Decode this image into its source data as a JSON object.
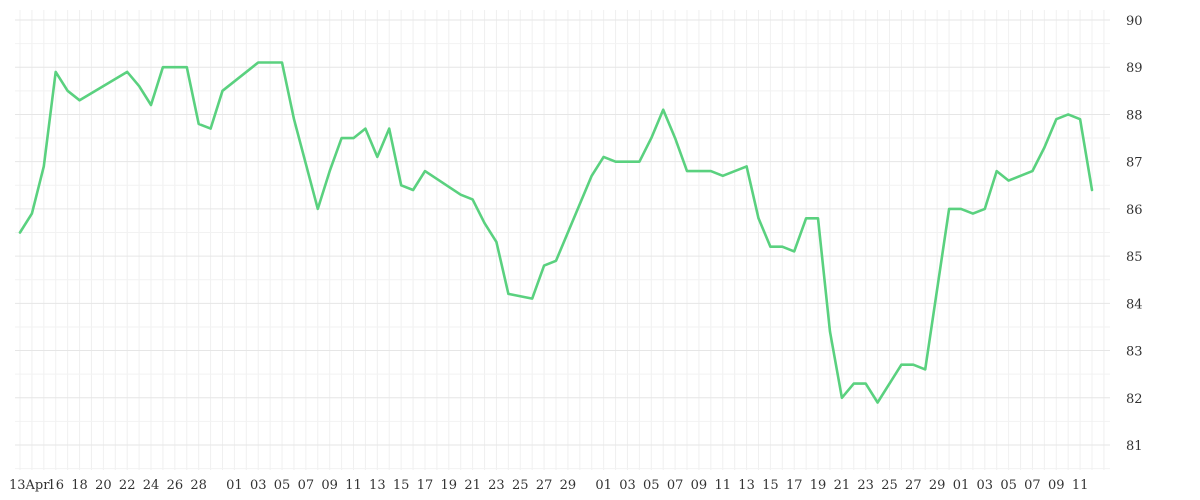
{
  "chart_data": {
    "type": "line",
    "title": "",
    "xlabel": "",
    "ylabel": "",
    "x_range": [
      "2023-04-13",
      "2023-07-12"
    ],
    "ylim": [
      80.5,
      90.2
    ],
    "y_ticks": [
      81,
      82,
      83,
      84,
      85,
      86,
      87,
      88,
      89,
      90
    ],
    "x_tick_labels": [
      "13Apr",
      "16",
      "18",
      "20",
      "22",
      "24",
      "26",
      "28",
      "01",
      "03",
      "05",
      "07",
      "09",
      "11",
      "13",
      "15",
      "17",
      "19",
      "21",
      "23",
      "25",
      "27",
      "29",
      "01",
      "03",
      "05",
      "07",
      "09",
      "11",
      "13",
      "15",
      "17",
      "19",
      "21",
      "23",
      "25",
      "27",
      "29",
      "01",
      "03",
      "05",
      "07",
      "09",
      "11"
    ],
    "x_tick_dates": [
      "2023-04-13",
      "2023-04-16",
      "2023-04-18",
      "2023-04-20",
      "2023-04-22",
      "2023-04-24",
      "2023-04-26",
      "2023-04-28",
      "2023-05-01",
      "2023-05-03",
      "2023-05-05",
      "2023-05-07",
      "2023-05-09",
      "2023-05-11",
      "2023-05-13",
      "2023-05-15",
      "2023-05-17",
      "2023-05-19",
      "2023-05-21",
      "2023-05-23",
      "2023-05-25",
      "2023-05-27",
      "2023-05-29",
      "2023-06-01",
      "2023-06-03",
      "2023-06-05",
      "2023-06-07",
      "2023-06-09",
      "2023-06-11",
      "2023-06-13",
      "2023-06-15",
      "2023-06-17",
      "2023-06-19",
      "2023-06-21",
      "2023-06-23",
      "2023-06-25",
      "2023-06-27",
      "2023-06-29",
      "2023-07-01",
      "2023-07-03",
      "2023-07-05",
      "2023-07-07",
      "2023-07-09",
      "2023-07-11"
    ],
    "grid": true,
    "y_axis_position": "right",
    "series": [
      {
        "color": "#5ad17f",
        "x": [
          "2023-04-13",
          "2023-04-14",
          "2023-04-15",
          "2023-04-16",
          "2023-04-17",
          "2023-04-18",
          "2023-04-22",
          "2023-04-23",
          "2023-04-24",
          "2023-04-25",
          "2023-04-26",
          "2023-04-27",
          "2023-04-28",
          "2023-04-29",
          "2023-04-30",
          "2023-05-03",
          "2023-05-05",
          "2023-05-06",
          "2023-05-08",
          "2023-05-09",
          "2023-05-10",
          "2023-05-11",
          "2023-05-12",
          "2023-05-13",
          "2023-05-14",
          "2023-05-15",
          "2023-05-16",
          "2023-05-17",
          "2023-05-20",
          "2023-05-21",
          "2023-05-22",
          "2023-05-23",
          "2023-05-24",
          "2023-05-26",
          "2023-05-27",
          "2023-05-28",
          "2023-05-31",
          "2023-06-01",
          "2023-06-02",
          "2023-06-04",
          "2023-06-05",
          "2023-06-06",
          "2023-06-07",
          "2023-06-08",
          "2023-06-10",
          "2023-06-11",
          "2023-06-13",
          "2023-06-14",
          "2023-06-15",
          "2023-06-16",
          "2023-06-17",
          "2023-06-18",
          "2023-06-19",
          "2023-06-20",
          "2023-06-21",
          "2023-06-22",
          "2023-06-23",
          "2023-06-24",
          "2023-06-26",
          "2023-06-27",
          "2023-06-28",
          "2023-06-30",
          "2023-07-01",
          "2023-07-02",
          "2023-07-03",
          "2023-07-04",
          "2023-07-05",
          "2023-07-07",
          "2023-07-08",
          "2023-07-09",
          "2023-07-10",
          "2023-07-11",
          "2023-07-12"
        ],
        "values": [
          85.5,
          85.9,
          86.9,
          88.9,
          88.5,
          88.3,
          88.9,
          88.6,
          88.2,
          89.0,
          89.0,
          89.0,
          87.8,
          87.7,
          88.5,
          89.1,
          89.1,
          87.9,
          86.0,
          86.8,
          87.5,
          87.5,
          87.7,
          87.1,
          87.7,
          86.5,
          86.4,
          86.8,
          86.3,
          86.2,
          85.7,
          85.3,
          84.2,
          84.1,
          84.8,
          84.9,
          86.7,
          87.1,
          87.0,
          87.0,
          87.5,
          88.1,
          87.5,
          86.8,
          86.8,
          86.7,
          86.9,
          85.8,
          85.2,
          85.2,
          85.1,
          85.8,
          85.8,
          83.4,
          82.0,
          82.3,
          82.3,
          81.9,
          82.7,
          82.7,
          82.6,
          86.0,
          86.0,
          85.9,
          86.0,
          86.8,
          86.6,
          86.8,
          87.3,
          87.9,
          88.0,
          87.9,
          86.4
        ]
      }
    ]
  }
}
